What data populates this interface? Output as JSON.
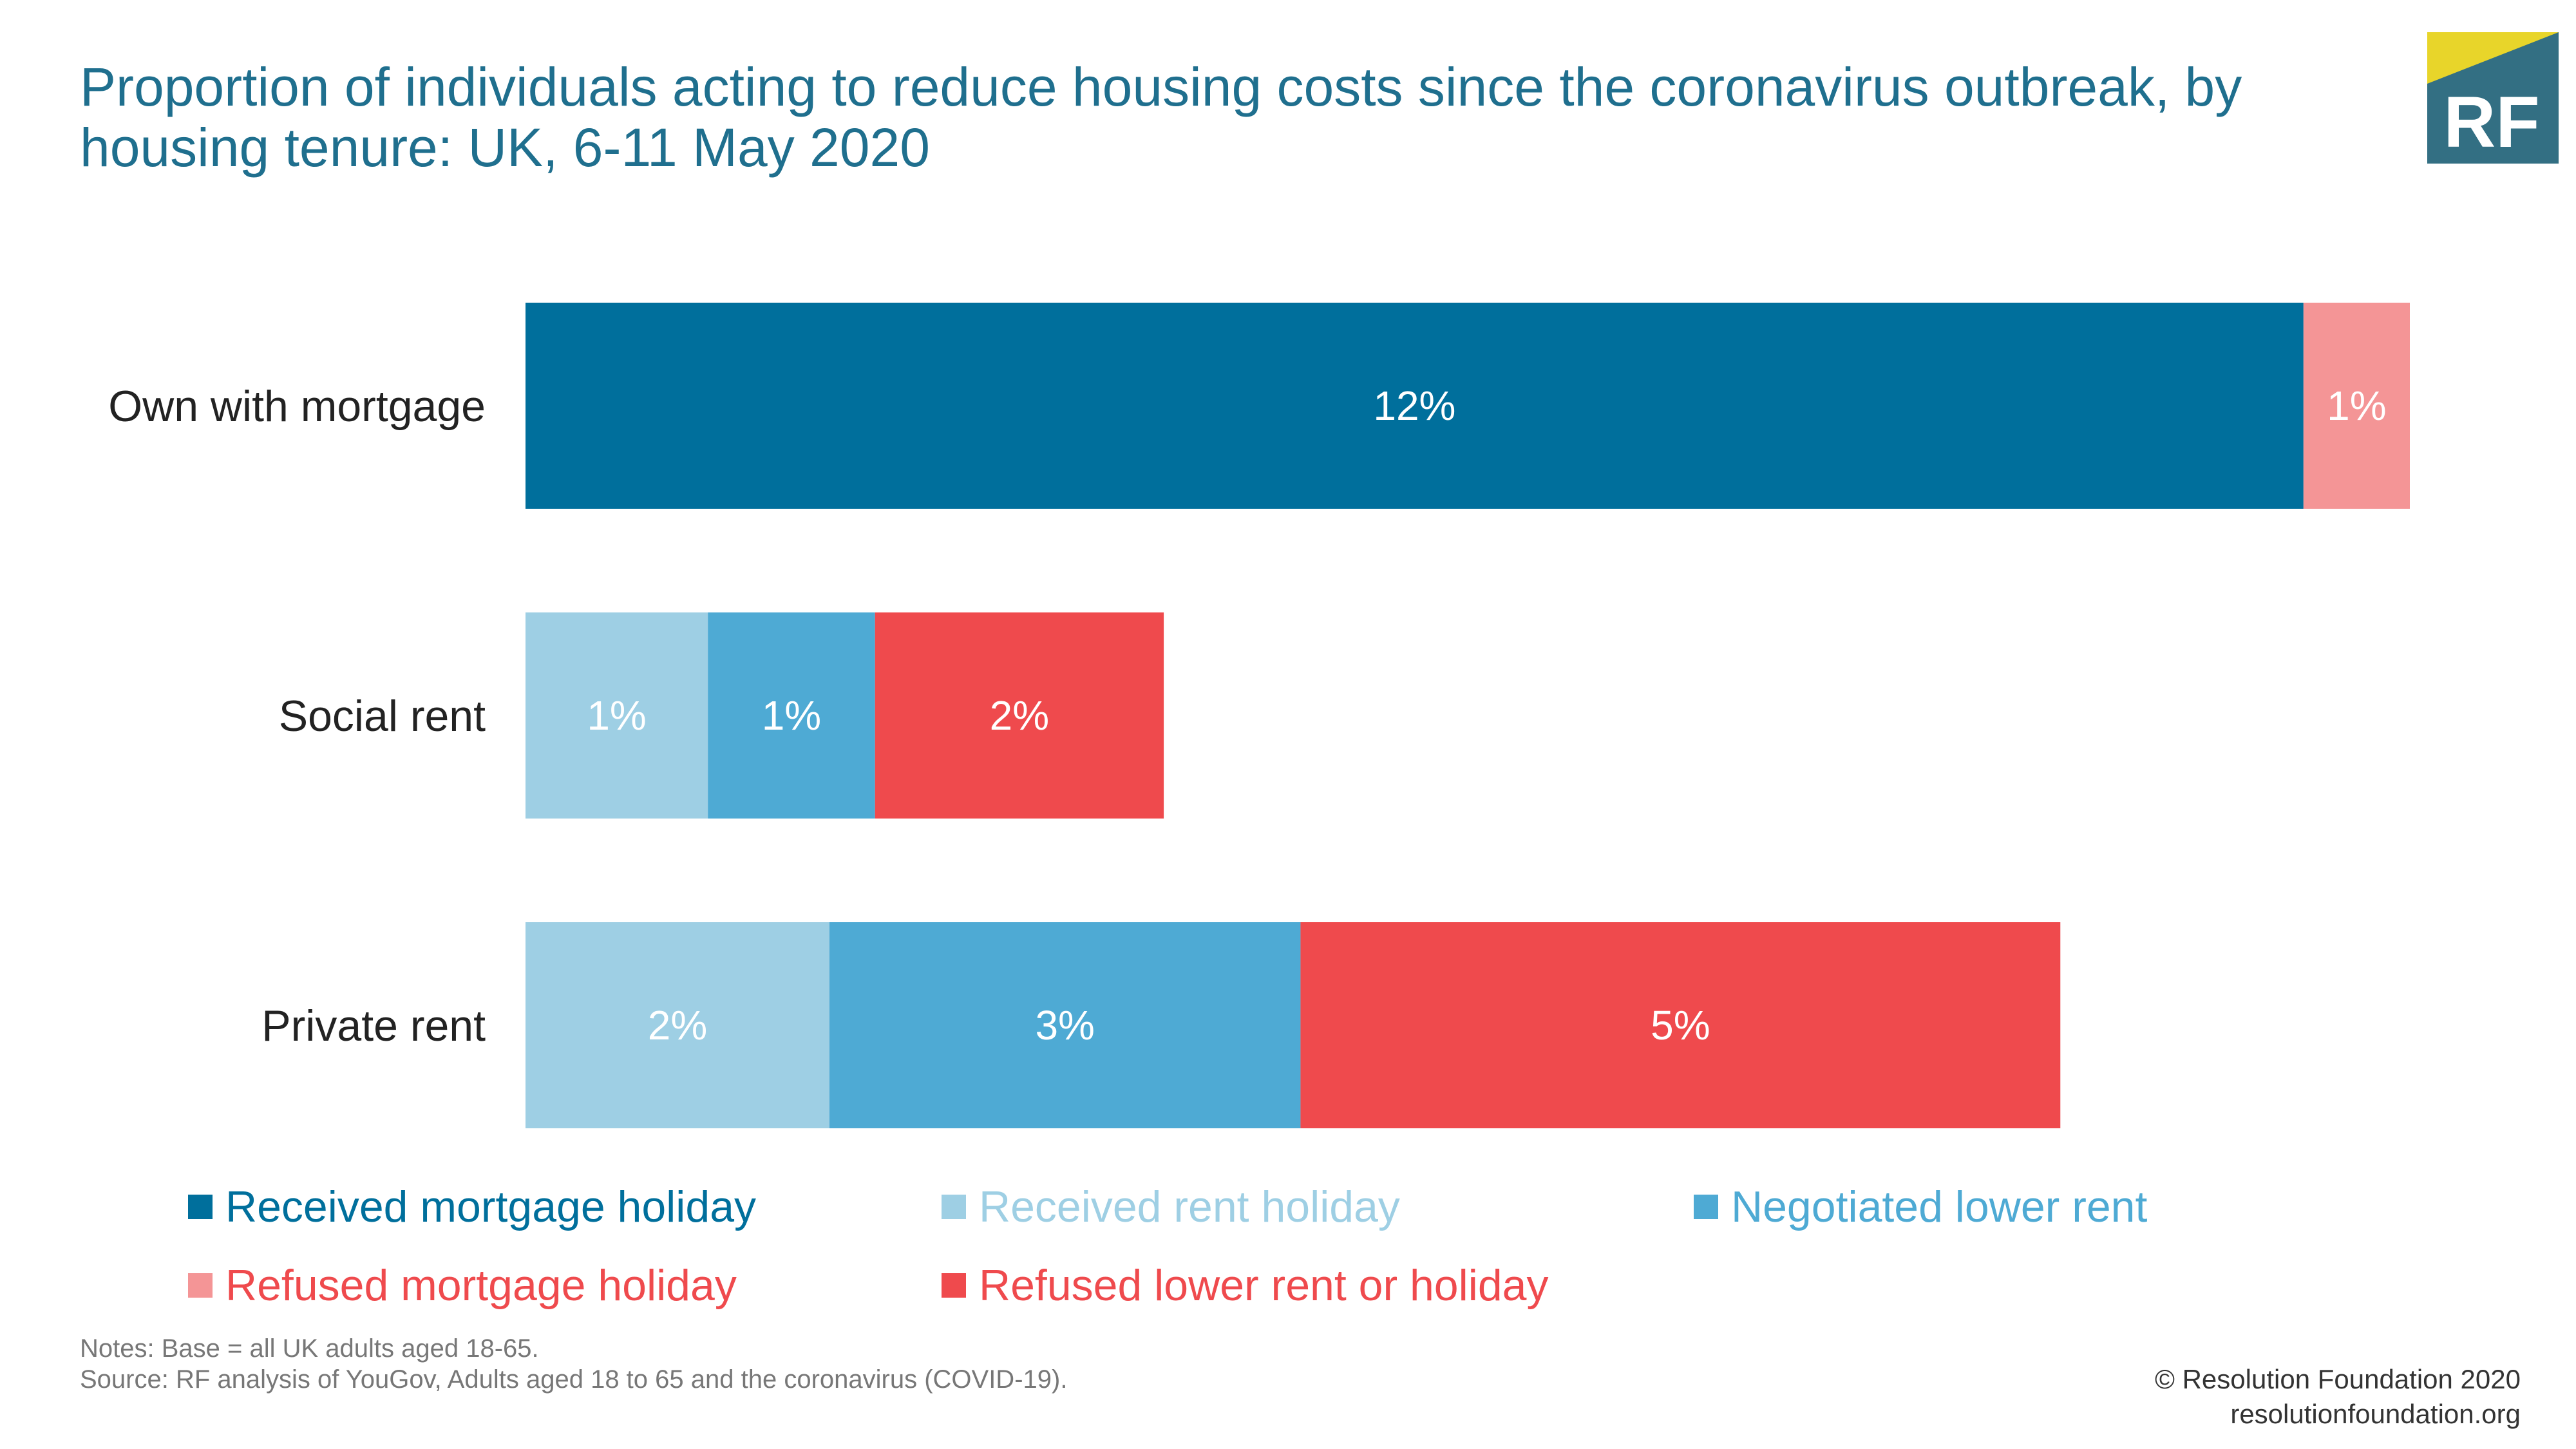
{
  "header": {
    "title": "Proportion of individuals acting to reduce housing costs since the coronavirus outbreak, by housing tenure: UK, 6-11 May 2020"
  },
  "logo": {
    "text": "RF",
    "colors": {
      "background": "#336f83",
      "accent": "#e8d52a",
      "text": "#ffffff"
    }
  },
  "chart_data": {
    "type": "bar",
    "orientation": "horizontal",
    "stacked": true,
    "title": "Proportion of individuals acting to reduce housing costs since the coronavirus outbreak, by housing tenure: UK, 6-11 May 2020",
    "categories": [
      "Own with mortgage",
      "Social rent",
      "Private rent"
    ],
    "xlim": [
      0,
      12.9
    ],
    "grid": false,
    "legend_position": "bottom",
    "series": [
      {
        "name": "Received mortgage holiday",
        "color": "#006f9c",
        "values": [
          11.7,
          0,
          0
        ],
        "labels": [
          "12%",
          "",
          ""
        ]
      },
      {
        "name": "Refused mortgage holiday",
        "color": "#f49596",
        "values": [
          0.7,
          0,
          0
        ],
        "labels": [
          "1%",
          "",
          ""
        ]
      },
      {
        "name": "Received rent holiday",
        "color": "#9ecfe4",
        "values": [
          0,
          1.2,
          2.0
        ],
        "labels": [
          "",
          "1%",
          "2%"
        ]
      },
      {
        "name": "Negotiated lower rent",
        "color": "#4eaad4",
        "values": [
          0,
          1.1,
          3.1
        ],
        "labels": [
          "",
          "1%",
          "3%"
        ]
      },
      {
        "name": "Refused lower rent or holiday",
        "color": "#ef4a4d",
        "values": [
          0,
          1.9,
          5.0
        ],
        "labels": [
          "",
          "2%",
          "5%"
        ]
      }
    ]
  },
  "legend": {
    "items": [
      {
        "label": "Received mortgage holiday",
        "color": "#006f9c"
      },
      {
        "label": "Received rent holiday",
        "color": "#9ecfe4"
      },
      {
        "label": "Negotiated lower rent",
        "color": "#4eaad4"
      },
      {
        "label": "Refused mortgage holiday",
        "color": "#f49596"
      },
      {
        "label": "Refused lower rent or holiday",
        "color": "#ef4a4d"
      }
    ]
  },
  "footer": {
    "notes": "Notes: Base = all UK adults aged 18-65.",
    "source": "Source: RF analysis of YouGov, Adults aged 18 to 65 and the coronavirus (COVID-19).",
    "copyright": "© Resolution Foundation 2020",
    "website": "resolutionfoundation.org"
  }
}
